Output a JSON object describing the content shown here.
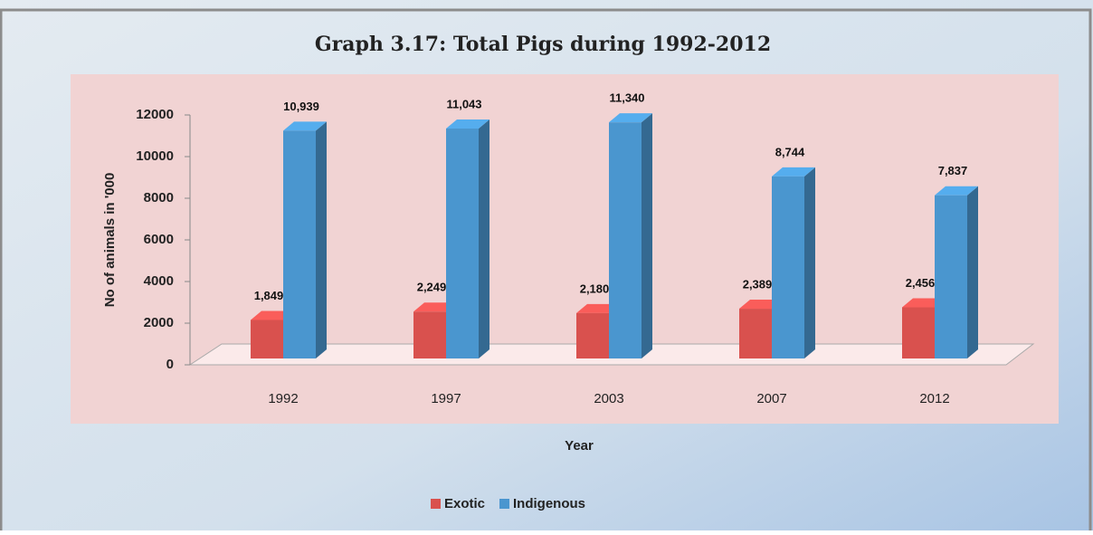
{
  "chart_data": {
    "type": "bar3d",
    "title": "Graph 3.17: Total Pigs during 1992-2012",
    "xlabel": "Year",
    "ylabel": "No of animals in '000",
    "categories": [
      "1992",
      "1997",
      "2003",
      "2007",
      "2012"
    ],
    "series": [
      {
        "name": "Exotic",
        "color": "#d9514e",
        "values": [
          1849,
          2249,
          2180,
          2389,
          2456
        ],
        "value_labels": [
          "1,849",
          "2,249",
          "2,180",
          "2,389",
          "2,456"
        ]
      },
      {
        "name": "Indigenous",
        "color": "#4a96cf",
        "values": [
          10939,
          11043,
          11340,
          8744,
          7837
        ],
        "value_labels": [
          "10,939",
          "11,043",
          "11,340",
          "8,744",
          "7,837"
        ]
      }
    ],
    "ylim": [
      0,
      12000
    ],
    "yticks": [
      0,
      2000,
      4000,
      6000,
      8000,
      10000,
      12000
    ],
    "legend": "bottom"
  }
}
